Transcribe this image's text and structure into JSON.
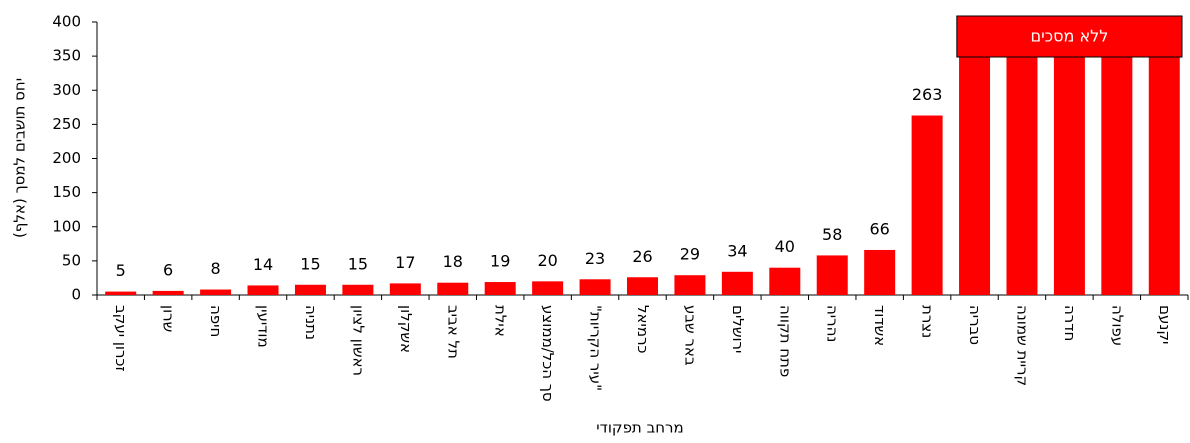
{
  "chart_data": {
    "type": "bar",
    "y_label": "יחס תושבים למסך (אלף)",
    "x_label": "מרחב תפקודי",
    "categories": [
      "זכרון יעקב",
      "שרון",
      "חיפה",
      "מודיעין",
      "נתניה",
      "ראשון לציון",
      "אשקלון",
      "תל אביב",
      "אילת",
      "סך הכל/ממוצע",
      "\"עיר הקריות\"",
      "כרמיאל",
      "באר שבע",
      "ירושלים",
      "פתח תקווה",
      "נהריה",
      "אשדוד",
      "נצרת",
      "טבריה",
      "קריית שמונה",
      "חדרה",
      "עפולה",
      "יקנעם"
    ],
    "values": [
      5,
      6,
      8,
      14,
      15,
      15,
      17,
      18,
      19,
      20,
      23,
      26,
      29,
      34,
      40,
      58,
      66,
      263,
      null,
      null,
      null,
      null,
      null
    ],
    "annotation": {
      "text": "ללא מסכים",
      "categories": [
        18,
        22
      ]
    },
    "color": "#ff0000",
    "ylim": [
      0,
      400
    ],
    "yticks": [
      0,
      50,
      100,
      150,
      200,
      250,
      300,
      350,
      400
    ],
    "grid": false
  }
}
